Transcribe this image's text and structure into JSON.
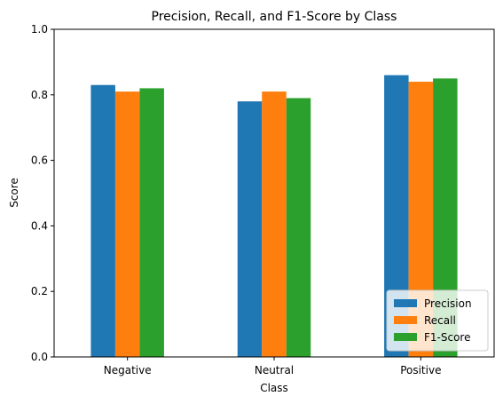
{
  "chart_data": {
    "type": "bar",
    "title": "Precision, Recall, and F1-Score by Class",
    "xlabel": "Class",
    "ylabel": "Score",
    "ylim": [
      0,
      1.0
    ],
    "yticks": [
      "0.0",
      "0.2",
      "0.4",
      "0.6",
      "0.8",
      "1.0"
    ],
    "categories": [
      "Negative",
      "Neutral",
      "Positive"
    ],
    "series": [
      {
        "name": "Precision",
        "color": "#1f77b4",
        "values": [
          0.83,
          0.78,
          0.86
        ]
      },
      {
        "name": "Recall",
        "color": "#ff7f0e",
        "values": [
          0.81,
          0.81,
          0.84
        ]
      },
      {
        "name": "F1-Score",
        "color": "#2ca02c",
        "values": [
          0.82,
          0.79,
          0.85
        ]
      }
    ],
    "legend_position": "lower right",
    "grid": false
  }
}
